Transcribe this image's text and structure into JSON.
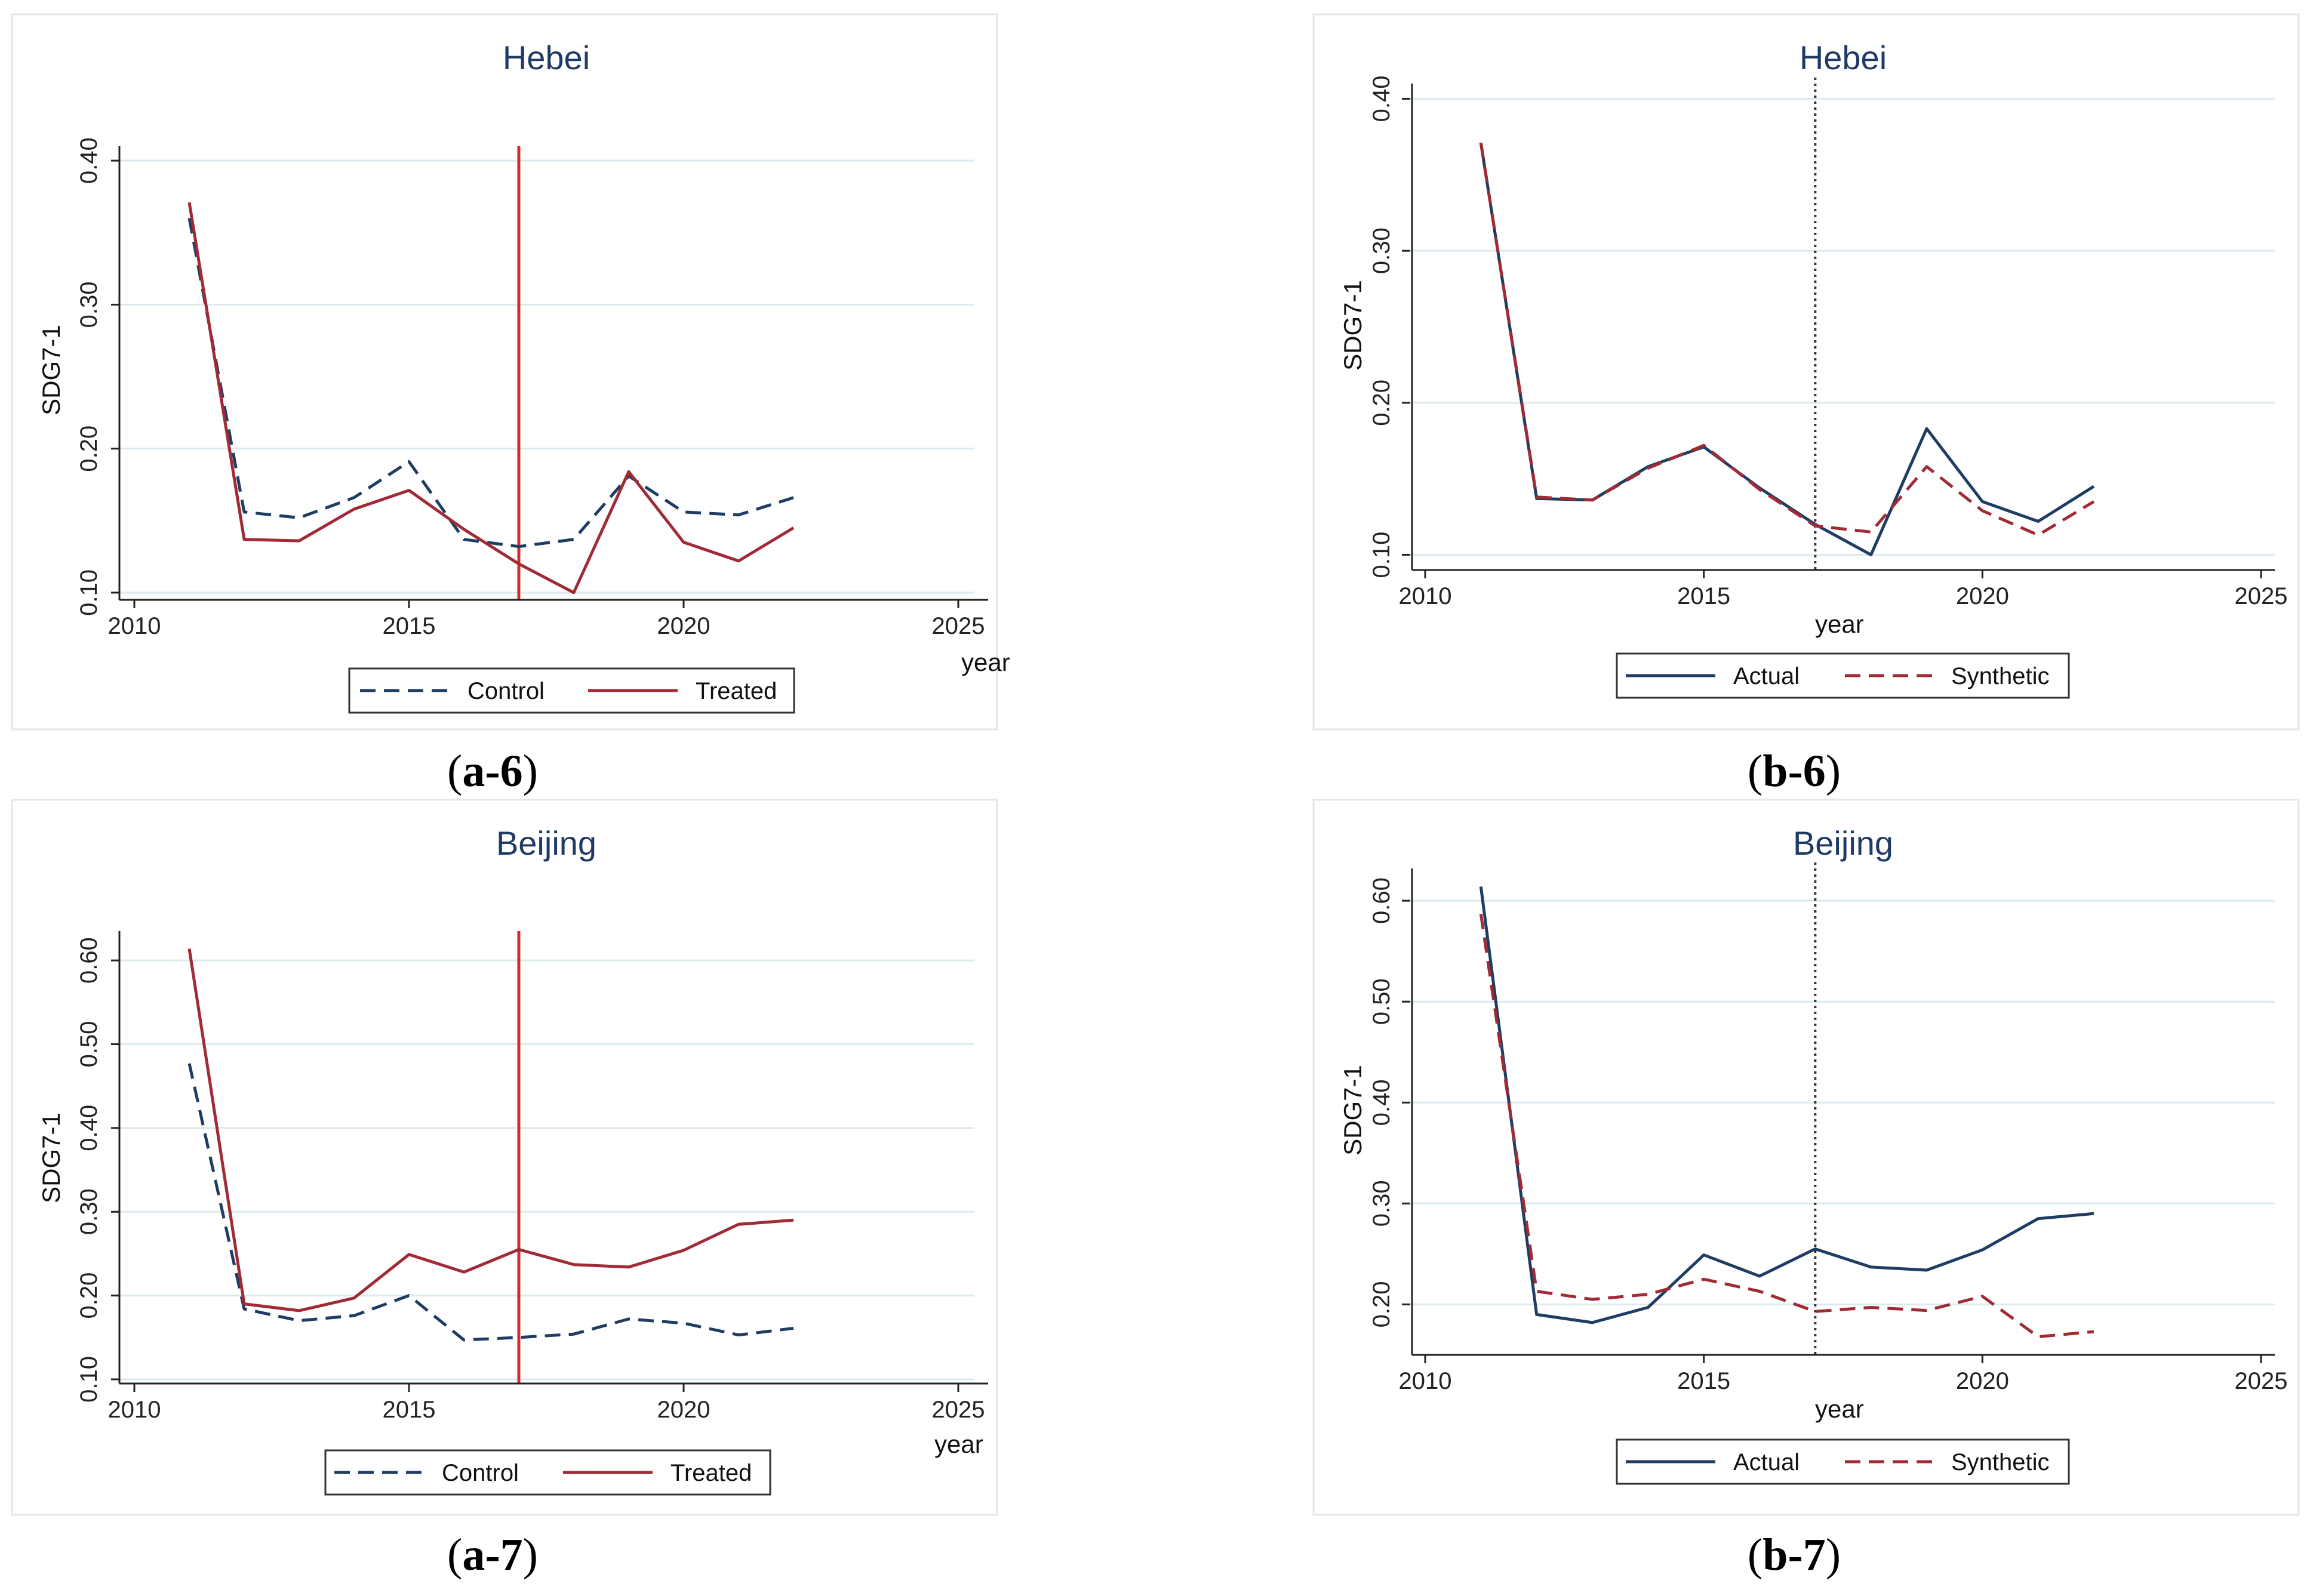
{
  "colors": {
    "control": "#1f3d63",
    "treated": "#a12b35",
    "treat_line": "#d42a2a",
    "vline_dotted": "#333333"
  },
  "chart_data": [
    {
      "id": "a6",
      "type": "line",
      "title": "Hebei",
      "caption_label": "a-6",
      "xlabel": "year",
      "ylabel": "SDG7-1",
      "xlim": [
        2010,
        2025
      ],
      "ylim": [
        0.095,
        0.41
      ],
      "xticks": [
        2010,
        2015,
        2020,
        2025
      ],
      "yticks": [
        0.1,
        0.2,
        0.3,
        0.4
      ],
      "ytick_labels": [
        "0.10",
        "0.20",
        "0.30",
        "0.40"
      ],
      "vline": {
        "x": 2017,
        "style": "solid-red"
      },
      "x": [
        2011,
        2012,
        2013,
        2014,
        2015,
        2016,
        2017,
        2018,
        2019,
        2020,
        2021,
        2022
      ],
      "series": [
        {
          "name": "Control",
          "style": "dashed",
          "color_key": "control",
          "values": [
            0.36,
            0.156,
            0.152,
            0.166,
            0.191,
            0.137,
            0.132,
            0.137,
            0.181,
            0.156,
            0.154,
            0.166
          ]
        },
        {
          "name": "Treated",
          "style": "solid",
          "color_key": "treated",
          "values": [
            0.371,
            0.137,
            0.136,
            0.158,
            0.171,
            0.144,
            0.12,
            0.1,
            0.184,
            0.135,
            0.122,
            0.145
          ]
        }
      ],
      "legend": [
        "Control",
        "Treated"
      ]
    },
    {
      "id": "b6",
      "type": "line",
      "title": "Hebei",
      "caption_label": "b-6",
      "xlabel": "year",
      "ylabel": "SDG7-1",
      "xlim": [
        2010,
        2025
      ],
      "ylim": [
        0.09,
        0.41
      ],
      "xticks": [
        2010,
        2015,
        2020,
        2025
      ],
      "yticks": [
        0.1,
        0.2,
        0.3,
        0.4
      ],
      "ytick_labels": [
        "0.10",
        "0.20",
        "0.30",
        "0.40"
      ],
      "vline": {
        "x": 2017,
        "style": "dotted"
      },
      "x": [
        2011,
        2012,
        2013,
        2014,
        2015,
        2016,
        2017,
        2018,
        2019,
        2020,
        2021,
        2022
      ],
      "series": [
        {
          "name": "Actual",
          "style": "solid",
          "color_key": "control",
          "values": [
            0.371,
            0.137,
            0.136,
            0.158,
            0.171,
            0.144,
            0.12,
            0.1,
            0.183,
            0.135,
            0.122,
            0.145
          ]
        },
        {
          "name": "Synthetic",
          "style": "dashed",
          "color_key": "treated",
          "values": [
            0.371,
            0.138,
            0.136,
            0.157,
            0.172,
            0.143,
            0.119,
            0.115,
            0.158,
            0.129,
            0.113,
            0.135
          ]
        }
      ],
      "legend": [
        "Actual",
        "Synthetic"
      ]
    },
    {
      "id": "a7",
      "type": "line",
      "title": "Beijing",
      "caption_label": "a-7",
      "xlabel": "year",
      "ylabel": "SDG7-1",
      "xlim": [
        2010,
        2025
      ],
      "ylim": [
        0.095,
        0.635
      ],
      "xticks": [
        2010,
        2015,
        2020,
        2025
      ],
      "yticks": [
        0.1,
        0.2,
        0.3,
        0.4,
        0.5,
        0.6
      ],
      "ytick_labels": [
        "0.10",
        "0.20",
        "0.30",
        "0.40",
        "0.50",
        "0.60"
      ],
      "vline": {
        "x": 2017,
        "style": "solid-red"
      },
      "x": [
        2011,
        2012,
        2013,
        2014,
        2015,
        2016,
        2017,
        2018,
        2019,
        2020,
        2021,
        2022
      ],
      "series": [
        {
          "name": "Control",
          "style": "dashed",
          "color_key": "control",
          "values": [
            0.477,
            0.184,
            0.17,
            0.176,
            0.2,
            0.147,
            0.15,
            0.154,
            0.172,
            0.167,
            0.153,
            0.161
          ]
        },
        {
          "name": "Treated",
          "style": "solid",
          "color_key": "treated",
          "values": [
            0.614,
            0.19,
            0.182,
            0.197,
            0.249,
            0.228,
            0.255,
            0.237,
            0.234,
            0.254,
            0.285,
            0.29
          ]
        }
      ],
      "legend": [
        "Control",
        "Treated"
      ]
    },
    {
      "id": "b7",
      "type": "line",
      "title": "Beijing",
      "caption_label": "b-7",
      "xlabel": "year",
      "ylabel": "SDG7-1",
      "xlim": [
        2010,
        2025
      ],
      "ylim": [
        0.15,
        0.632
      ],
      "xticks": [
        2010,
        2015,
        2020,
        2025
      ],
      "yticks": [
        0.2,
        0.3,
        0.4,
        0.5,
        0.6
      ],
      "ytick_labels": [
        "0.20",
        "0.30",
        "0.40",
        "0.50",
        "0.60"
      ],
      "vline": {
        "x": 2017,
        "style": "dotted"
      },
      "x": [
        2011,
        2012,
        2013,
        2014,
        2015,
        2016,
        2017,
        2018,
        2019,
        2020,
        2021,
        2022
      ],
      "series": [
        {
          "name": "Actual",
          "style": "solid",
          "color_key": "control",
          "values": [
            0.614,
            0.19,
            0.182,
            0.197,
            0.249,
            0.228,
            0.255,
            0.237,
            0.234,
            0.254,
            0.285,
            0.29
          ]
        },
        {
          "name": "Synthetic",
          "style": "dashed",
          "color_key": "treated",
          "values": [
            0.587,
            0.213,
            0.205,
            0.21,
            0.225,
            0.213,
            0.193,
            0.197,
            0.194,
            0.208,
            0.168,
            0.173
          ]
        }
      ],
      "legend": [
        "Actual",
        "Synthetic"
      ]
    }
  ]
}
